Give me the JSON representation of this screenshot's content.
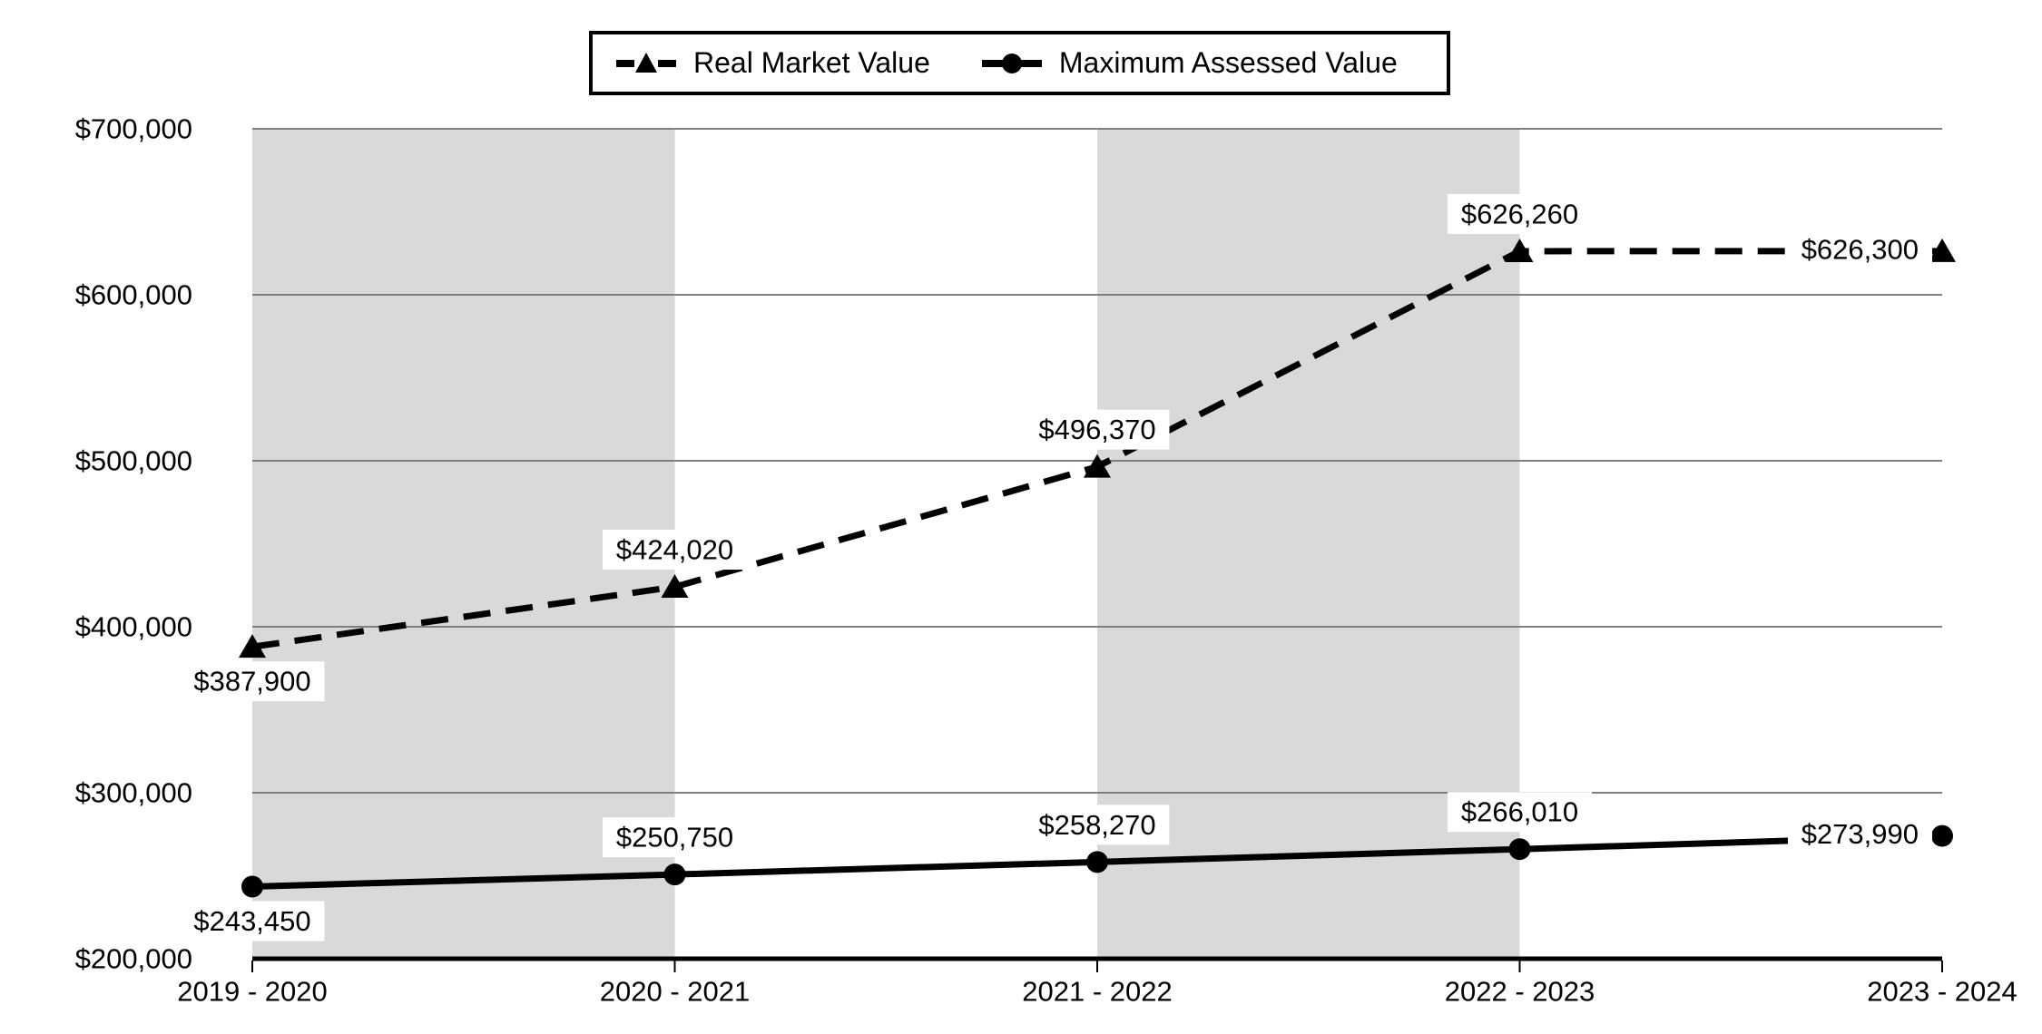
{
  "chart_data": {
    "type": "line",
    "title": "",
    "categories": [
      "2019 - 2020",
      "2020 - 2021",
      "2021 - 2022",
      "2022 - 2023",
      "2023 - 2024"
    ],
    "series": [
      {
        "name": "Real Market Value",
        "line_style": "dashed",
        "marker": "triangle",
        "color": "#000000",
        "values": [
          387900,
          424020,
          496370,
          626260,
          626300
        ],
        "labels": [
          "$387,900",
          "$424,020",
          "$496,370",
          "$626,260",
          "$626,300"
        ],
        "label_placement": [
          "below",
          "above",
          "above",
          "above",
          "left"
        ]
      },
      {
        "name": "Maximum Assessed Value",
        "line_style": "solid",
        "marker": "circle",
        "color": "#000000",
        "values": [
          243450,
          250750,
          258270,
          266010,
          273990
        ],
        "labels": [
          "$243,450",
          "$250,750",
          "$258,270",
          "$266,010",
          "$273,990"
        ],
        "label_placement": [
          "below",
          "above",
          "above",
          "above",
          "left"
        ]
      }
    ],
    "y_axis": {
      "min": 200000,
      "max": 700000,
      "ticks": [
        {
          "label": "$700,000",
          "value": 700000
        },
        {
          "label": "$600,000",
          "value": 600000
        },
        {
          "label": "$500,000",
          "value": 500000
        },
        {
          "label": "$400,000",
          "value": 400000
        },
        {
          "label": "$300,000",
          "value": 300000
        },
        {
          "label": "$200,000",
          "value": 200000
        }
      ]
    },
    "x_axis": {
      "label": ""
    },
    "bands": [
      [
        0,
        1
      ],
      [
        2,
        3
      ]
    ],
    "legend": {
      "position": "top",
      "entries": [
        "Real Market Value",
        "Maximum Assessed Value"
      ]
    },
    "layout": {
      "grid": "horizontal-only"
    },
    "colors": {
      "band": "#d9d9d9",
      "gridline": "#7f7f7f",
      "axis": "#000000",
      "series": "#000000",
      "label_bg": "#ffffff",
      "text": "#000000"
    }
  }
}
